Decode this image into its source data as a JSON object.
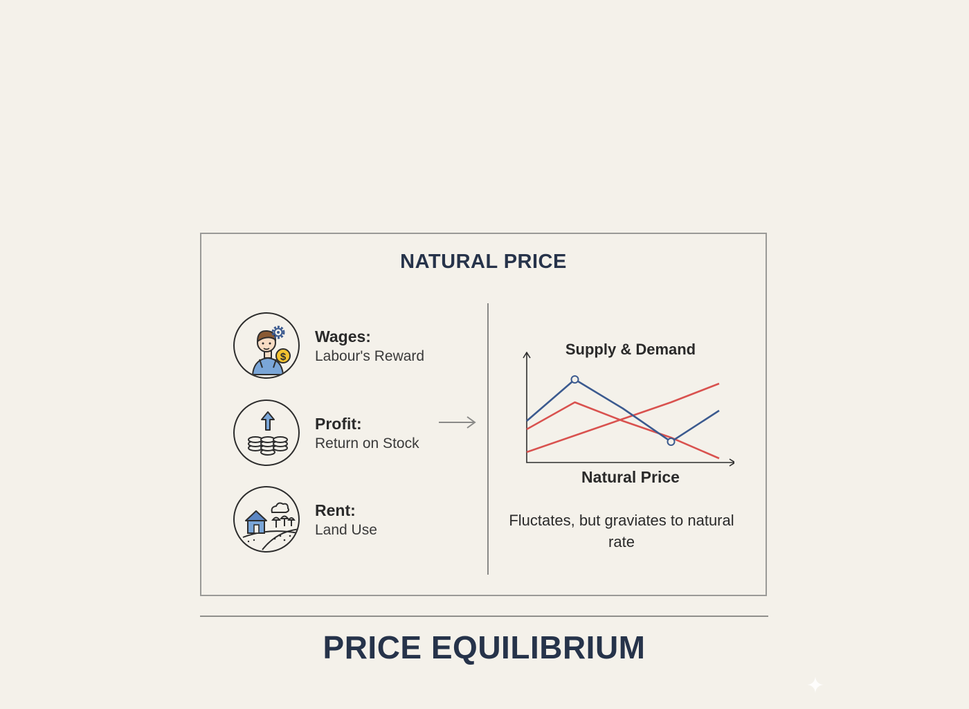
{
  "panel": {
    "title": "NATURAL PRICE",
    "factors": [
      {
        "name": "Wages:",
        "desc": "Labour's Reward",
        "icon": "worker-icon"
      },
      {
        "name": "Profit:",
        "desc": "Return on Stock",
        "icon": "coins-icon"
      },
      {
        "name": "Rent:",
        "desc": "Land Use",
        "icon": "land-icon"
      }
    ]
  },
  "chart_data": {
    "type": "line",
    "title": "Supply & Demand",
    "xlabel": "Natural Price",
    "ylabel": "",
    "x": [
      0,
      1,
      2,
      3,
      4
    ],
    "series": [
      {
        "values": [
          2.0,
          4.0,
          2.6,
          1.0,
          2.5
        ],
        "color": "#3b5a8f"
      },
      {
        "values": [
          1.6,
          2.9,
          2.0,
          1.2,
          0.2
        ],
        "color": "#d9524f"
      },
      {
        "values": [
          0.5,
          1.3,
          2.1,
          2.9,
          3.8
        ],
        "color": "#d9524f"
      }
    ],
    "ylim": [
      0,
      5
    ],
    "grid": false,
    "legend": "none"
  },
  "caption": "Fluctates, but graviates to natural rate",
  "footer": {
    "title": "PRICE EQUILIBRIUM"
  },
  "colors": {
    "background": "#f4f1ea",
    "navy": "#26334a",
    "blue": "#3b5a8f",
    "red": "#d9524f",
    "gold": "#f2c230"
  }
}
